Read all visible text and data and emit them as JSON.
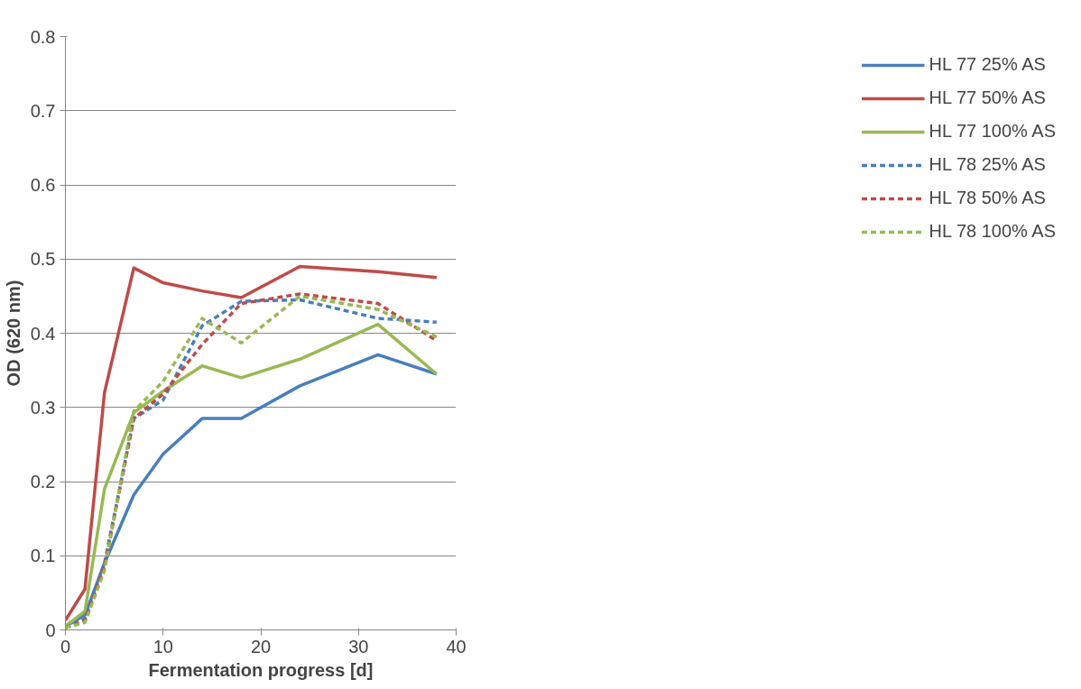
{
  "chart_data": {
    "type": "line",
    "xlabel": "Fermentation progress [d]",
    "ylabel": "OD (620 nm)",
    "x": [
      0,
      2,
      4,
      7,
      10,
      14,
      18,
      24,
      32,
      38
    ],
    "xlim": [
      0,
      40
    ],
    "xticks": [
      0,
      10,
      20,
      30,
      40
    ],
    "ylim": [
      0,
      0.8
    ],
    "yticks": [
      0,
      0.1,
      0.2,
      0.3,
      0.4,
      0.5,
      0.6,
      0.7,
      0.8
    ],
    "grid": "y",
    "legend": "right",
    "marker": "none",
    "series": [
      {
        "name": "HL 77 25% AS",
        "color": "#4a7ebb",
        "line_style": "solid",
        "values": [
          0.005,
          0.02,
          0.09,
          0.182,
          0.237,
          0.285,
          0.285,
          0.329,
          0.371,
          0.345
        ]
      },
      {
        "name": "HL 77 50% AS",
        "color": "#be4b48",
        "line_style": "solid",
        "values": [
          0.013,
          0.055,
          0.32,
          0.488,
          0.468,
          0.457,
          0.448,
          0.49,
          0.483,
          0.475
        ]
      },
      {
        "name": "HL 77 100% AS",
        "color": "#98b954",
        "line_style": "solid",
        "values": [
          0.005,
          0.025,
          0.19,
          0.293,
          0.322,
          0.356,
          0.34,
          0.365,
          0.412,
          0.345
        ]
      },
      {
        "name": "HL 78 25% AS",
        "color": "#4a7ebb",
        "line_style": "dashed",
        "values": [
          0.003,
          0.015,
          0.09,
          0.285,
          0.31,
          0.41,
          0.443,
          0.445,
          0.42,
          0.415
        ]
      },
      {
        "name": "HL 78 50% AS",
        "color": "#be4b48",
        "line_style": "dashed",
        "values": [
          0.003,
          0.012,
          0.085,
          0.285,
          0.318,
          0.385,
          0.44,
          0.453,
          0.44,
          0.39
        ]
      },
      {
        "name": "HL 78 100% AS",
        "color": "#98b954",
        "line_style": "dashed",
        "values": [
          0.003,
          0.01,
          0.08,
          0.295,
          0.335,
          0.42,
          0.387,
          0.45,
          0.432,
          0.395
        ]
      }
    ]
  }
}
